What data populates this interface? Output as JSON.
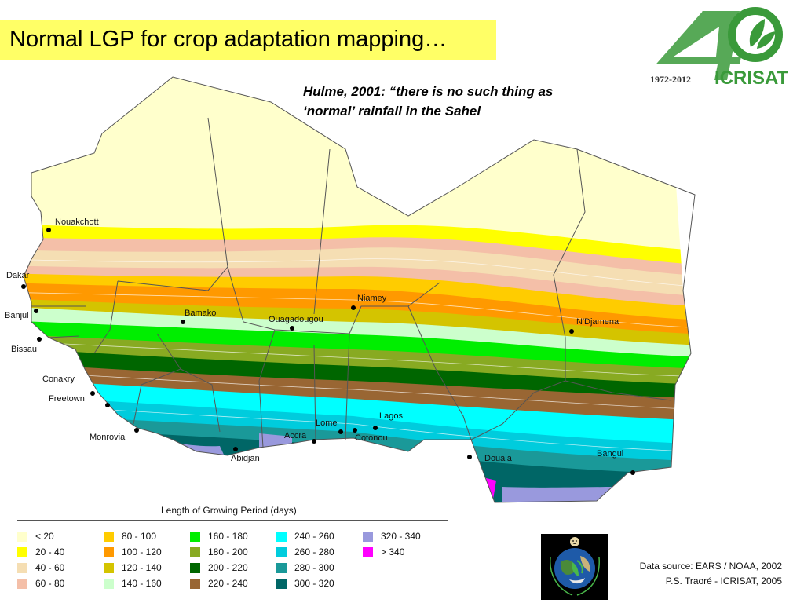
{
  "title": "Normal LGP for crop adaptation mapping…",
  "quote": {
    "line1": "Hulme, 2001: “there is no such thing as",
    "line2": "‘normal’ rainfall in the Sahel"
  },
  "logo": {
    "years": "1972-2012",
    "name": "ICRISAT",
    "number": "40",
    "color": "#3a9a3a"
  },
  "cities": [
    {
      "name": "Nouakchott"
    },
    {
      "name": "Dakar"
    },
    {
      "name": "Banjul"
    },
    {
      "name": "Bissau"
    },
    {
      "name": "Conakry"
    },
    {
      "name": "Freetown"
    },
    {
      "name": "Monrovia"
    },
    {
      "name": "Bamako"
    },
    {
      "name": "Ouagadougou"
    },
    {
      "name": "Niamey"
    },
    {
      "name": "N'Djamena"
    },
    {
      "name": "Abidjan"
    },
    {
      "name": "Accra"
    },
    {
      "name": "Lome"
    },
    {
      "name": "Cotonou"
    },
    {
      "name": "Lagos"
    },
    {
      "name": "Douala"
    },
    {
      "name": "Bangui"
    }
  ],
  "legend": {
    "title": "Length of Growing Period (days)",
    "items": [
      {
        "label": "< 20",
        "color": "#ffffcc"
      },
      {
        "label": "20 - 40",
        "color": "#ffff00"
      },
      {
        "label": "40 - 60",
        "color": "#f5deb3"
      },
      {
        "label": "60 - 80",
        "color": "#f4bfa8"
      },
      {
        "label": "80 - 100",
        "color": "#ffcc00"
      },
      {
        "label": "100 - 120",
        "color": "#ff9900"
      },
      {
        "label": "120 - 140",
        "color": "#d4c400"
      },
      {
        "label": "140 - 160",
        "color": "#ccffcc"
      },
      {
        "label": "160 - 180",
        "color": "#00ee00"
      },
      {
        "label": "180 - 200",
        "color": "#88aa22"
      },
      {
        "label": "200 - 220",
        "color": "#006600"
      },
      {
        "label": "220 - 240",
        "color": "#996633"
      },
      {
        "label": "240 - 260",
        "color": "#00ffff"
      },
      {
        "label": "260 - 280",
        "color": "#00ccdd"
      },
      {
        "label": "280 - 300",
        "color": "#1a9999"
      },
      {
        "label": "300 - 320",
        "color": "#006666"
      },
      {
        "label": "320 - 340",
        "color": "#9999dd"
      },
      {
        "label": "> 340",
        "color": "#ff00ff"
      }
    ]
  },
  "source": {
    "line1": "Data source: EARS / NOAA, 2002",
    "line2": "P.S. Traoré - ICRISAT, 2005"
  }
}
